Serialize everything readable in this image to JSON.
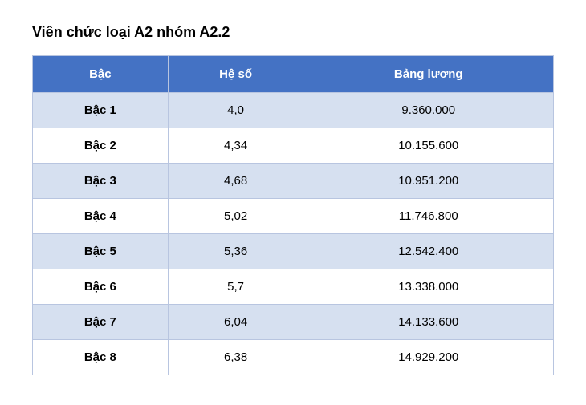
{
  "title": "Viên chức loại A2 nhóm A2.2",
  "table": {
    "columns": {
      "level": "Bậc",
      "coefficient": "Hệ số",
      "salary": "Bảng lương"
    },
    "rows": [
      {
        "level": "Bậc 1",
        "coefficient": "4,0",
        "salary": "9.360.000"
      },
      {
        "level": "Bậc 2",
        "coefficient": "4,34",
        "salary": "10.155.600"
      },
      {
        "level": "Bậc 3",
        "coefficient": "4,68",
        "salary": "10.951.200"
      },
      {
        "level": "Bậc 4",
        "coefficient": "5,02",
        "salary": "11.746.800"
      },
      {
        "level": "Bậc 5",
        "coefficient": "5,36",
        "salary": "12.542.400"
      },
      {
        "level": "Bậc 6",
        "coefficient": "5,7",
        "salary": "13.338.000"
      },
      {
        "level": "Bậc 7",
        "coefficient": "6,04",
        "salary": "14.133.600"
      },
      {
        "level": "Bậc 8",
        "coefficient": "6,38",
        "salary": "14.929.200"
      }
    ],
    "header_bg": "#4472c4",
    "header_text_color": "#ffffff",
    "row_odd_bg": "#d6e0f0",
    "row_even_bg": "#ffffff",
    "border_color": "#b8c5e0",
    "col_widths": {
      "level": "26%",
      "coefficient": "26%",
      "salary": "48%"
    },
    "font_size_header": 15,
    "font_size_body": 15
  }
}
